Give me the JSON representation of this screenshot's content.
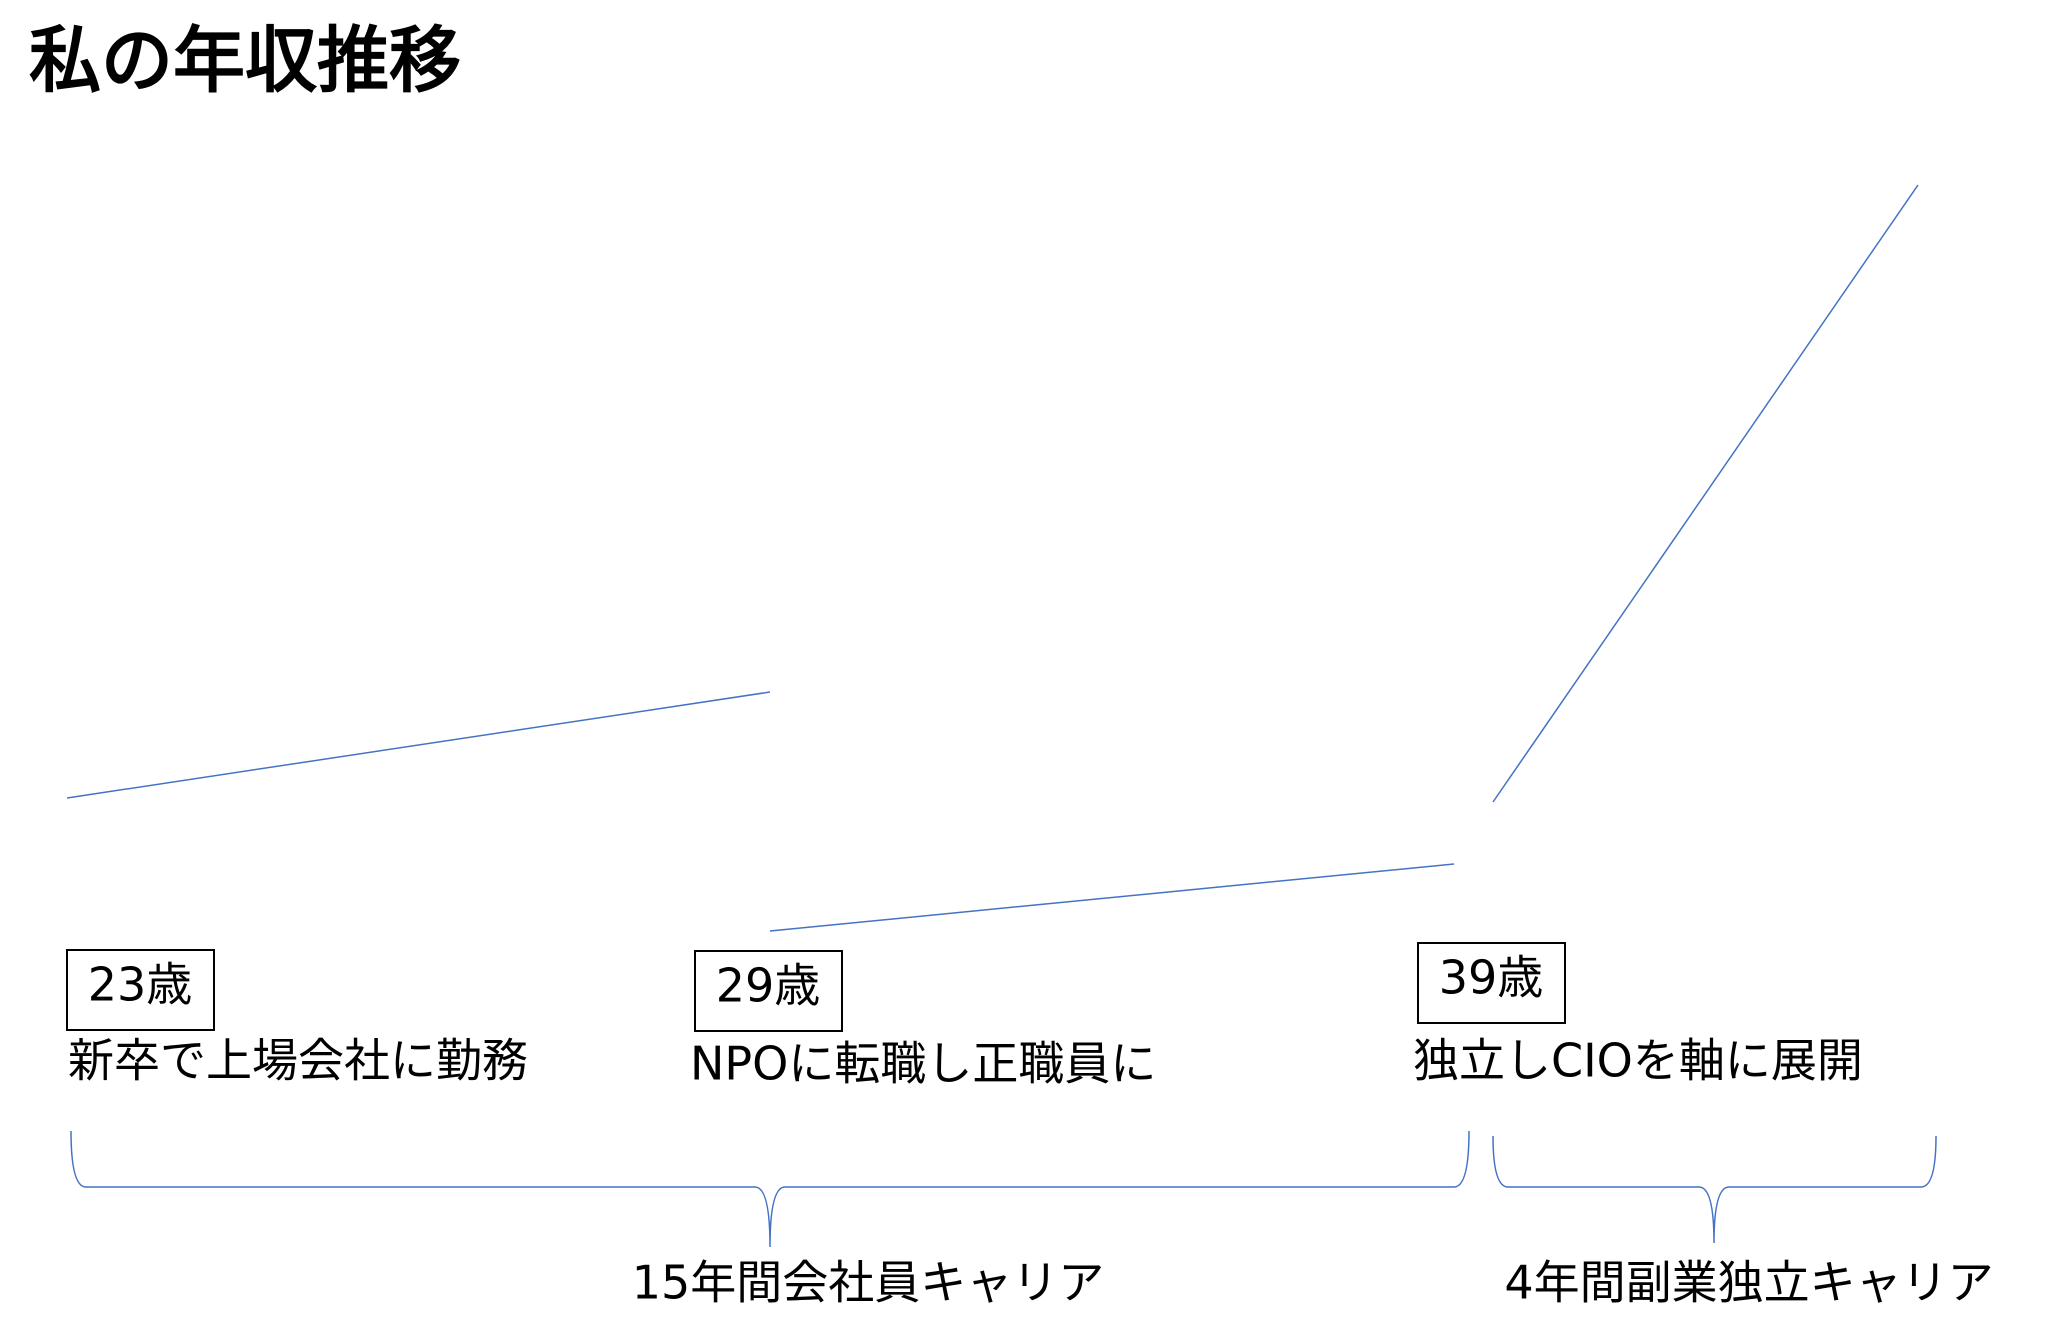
{
  "title": "私の年収推移",
  "milestones": [
    {
      "age": "23歳",
      "description": "新卒で上場会社に勤務"
    },
    {
      "age": "29歳",
      "description": "NPOに転職し正職員に"
    },
    {
      "age": "39歳",
      "description": "独立しCIOを軸に展開"
    }
  ],
  "spans": [
    {
      "label": "15年間会社員キャリア"
    },
    {
      "label": "4年間副業独立キャリア"
    }
  ]
}
